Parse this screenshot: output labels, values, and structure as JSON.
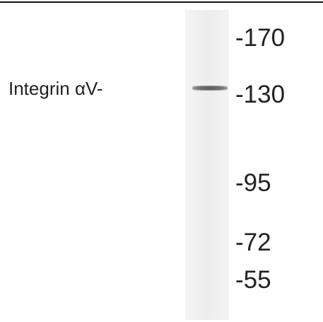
{
  "band_label": "Integrin αV-",
  "markers": [
    "-170",
    "-130",
    "-95",
    "-72",
    "-55"
  ]
}
